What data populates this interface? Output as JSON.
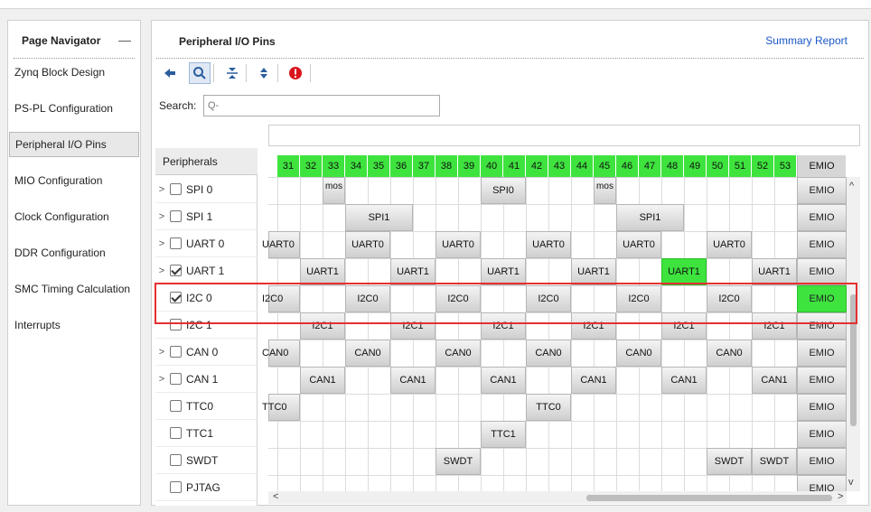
{
  "page_navigator": {
    "title": "Page Navigator",
    "minimize": "—",
    "items": [
      {
        "label": "Zynq Block Design"
      },
      {
        "label": "PS-PL Configuration"
      },
      {
        "label": "Peripheral I/O Pins",
        "selected": true
      },
      {
        "label": "MIO Configuration"
      },
      {
        "label": "Clock Configuration"
      },
      {
        "label": "DDR Configuration"
      },
      {
        "label": "SMC Timing Calculation"
      },
      {
        "label": "Interrupts"
      }
    ]
  },
  "main": {
    "title": "Peripheral I/O Pins",
    "summary_link": "Summary Report",
    "toolbar": [
      "back-arrow-icon",
      "search-icon",
      "collapse-all-icon",
      "expand-all-icon",
      "error-icon"
    ],
    "search": {
      "label": "Search:",
      "placeholder": "Q-"
    },
    "peripherals_header": "Peripherals",
    "peripherals": [
      {
        "label": "SPI 0",
        "expandable": true,
        "checked": false
      },
      {
        "label": "SPI 1",
        "expandable": true,
        "checked": false
      },
      {
        "label": "UART 0",
        "expandable": true,
        "checked": false
      },
      {
        "label": "UART 1",
        "expandable": true,
        "checked": true
      },
      {
        "label": "I2C 0",
        "expandable": false,
        "checked": true
      },
      {
        "label": "I2C 1",
        "expandable": false,
        "checked": false
      },
      {
        "label": "CAN 0",
        "expandable": true,
        "checked": false
      },
      {
        "label": "CAN 1",
        "expandable": true,
        "checked": false
      },
      {
        "label": "TTC0",
        "expandable": false,
        "checked": false
      },
      {
        "label": "TTC1",
        "expandable": false,
        "checked": false
      },
      {
        "label": "SWDT",
        "expandable": false,
        "checked": false
      },
      {
        "label": "PJTAG",
        "expandable": false,
        "checked": false
      }
    ],
    "pin_columns": [
      "31",
      "32",
      "33",
      "34",
      "35",
      "36",
      "37",
      "38",
      "39",
      "40",
      "41",
      "42",
      "43",
      "44",
      "45",
      "46",
      "47",
      "48",
      "49",
      "50",
      "51",
      "52",
      "53"
    ],
    "emio_label": "EMIO",
    "rows": [
      {
        "blocks": [
          {
            "col": 2,
            "span": 1,
            "label": "mos"
          },
          {
            "col": 9,
            "span": 2,
            "label": "SPI0"
          },
          {
            "col": 14,
            "span": 1,
            "label": "mos"
          }
        ],
        "emio_active": false
      },
      {
        "blocks": [
          {
            "col": 3,
            "span": 3,
            "label": "SPI1"
          },
          {
            "col": 15,
            "span": 3,
            "label": "SPI1"
          }
        ],
        "emio_active": false
      },
      {
        "blocks": [
          {
            "col": 0,
            "span": 1,
            "label": "UART0"
          },
          {
            "col": 3,
            "span": 2,
            "label": "UART0"
          },
          {
            "col": 7,
            "span": 2,
            "label": "UART0"
          },
          {
            "col": 11,
            "span": 2,
            "label": "UART0"
          },
          {
            "col": 15,
            "span": 2,
            "label": "UART0"
          },
          {
            "col": 19,
            "span": 2,
            "label": "UART0"
          }
        ],
        "emio_active": false
      },
      {
        "blocks": [
          {
            "col": 1,
            "span": 2,
            "label": "UART1"
          },
          {
            "col": 5,
            "span": 2,
            "label": "UART1"
          },
          {
            "col": 9,
            "span": 2,
            "label": "UART1"
          },
          {
            "col": 13,
            "span": 2,
            "label": "UART1"
          },
          {
            "col": 17,
            "span": 2,
            "label": "UART1",
            "active": true
          },
          {
            "col": 21,
            "span": 2,
            "label": "UART1"
          }
        ],
        "emio_active": false
      },
      {
        "blocks": [
          {
            "col": 0,
            "span": 1,
            "label": "I2C0"
          },
          {
            "col": 3,
            "span": 2,
            "label": "I2C0"
          },
          {
            "col": 7,
            "span": 2,
            "label": "I2C0"
          },
          {
            "col": 11,
            "span": 2,
            "label": "I2C0"
          },
          {
            "col": 15,
            "span": 2,
            "label": "I2C0"
          },
          {
            "col": 19,
            "span": 2,
            "label": "I2C0"
          }
        ],
        "emio_active": true
      },
      {
        "blocks": [
          {
            "col": 1,
            "span": 2,
            "label": "I2C1"
          },
          {
            "col": 5,
            "span": 2,
            "label": "I2C1"
          },
          {
            "col": 9,
            "span": 2,
            "label": "I2C1"
          },
          {
            "col": 13,
            "span": 2,
            "label": "I2C1"
          },
          {
            "col": 17,
            "span": 2,
            "label": "I2C1"
          },
          {
            "col": 21,
            "span": 2,
            "label": "I2C1"
          }
        ],
        "emio_active": false
      },
      {
        "blocks": [
          {
            "col": 0,
            "span": 1,
            "label": "CAN0"
          },
          {
            "col": 3,
            "span": 2,
            "label": "CAN0"
          },
          {
            "col": 7,
            "span": 2,
            "label": "CAN0"
          },
          {
            "col": 11,
            "span": 2,
            "label": "CAN0"
          },
          {
            "col": 15,
            "span": 2,
            "label": "CAN0"
          },
          {
            "col": 19,
            "span": 2,
            "label": "CAN0"
          }
        ],
        "emio_active": false
      },
      {
        "blocks": [
          {
            "col": 1,
            "span": 2,
            "label": "CAN1"
          },
          {
            "col": 5,
            "span": 2,
            "label": "CAN1"
          },
          {
            "col": 9,
            "span": 2,
            "label": "CAN1"
          },
          {
            "col": 13,
            "span": 2,
            "label": "CAN1"
          },
          {
            "col": 17,
            "span": 2,
            "label": "CAN1"
          },
          {
            "col": 21,
            "span": 2,
            "label": "CAN1"
          }
        ],
        "emio_active": false
      },
      {
        "blocks": [
          {
            "col": 0,
            "span": 1,
            "label": "TTC0"
          },
          {
            "col": 11,
            "span": 2,
            "label": "TTC0"
          }
        ],
        "emio_active": false
      },
      {
        "blocks": [
          {
            "col": 9,
            "span": 2,
            "label": "TTC1"
          }
        ],
        "emio_active": false
      },
      {
        "blocks": [
          {
            "col": 7,
            "span": 2,
            "label": "SWDT"
          },
          {
            "col": 19,
            "span": 2,
            "label": "SWDT"
          },
          {
            "col": 21,
            "span": 2,
            "label": "SWDT"
          }
        ],
        "emio_active": false
      },
      {
        "blocks": [],
        "emio_active": false
      }
    ],
    "colors": {
      "active": "#3ee33e",
      "highlight": "#e53030",
      "link": "#1a56c6"
    }
  }
}
